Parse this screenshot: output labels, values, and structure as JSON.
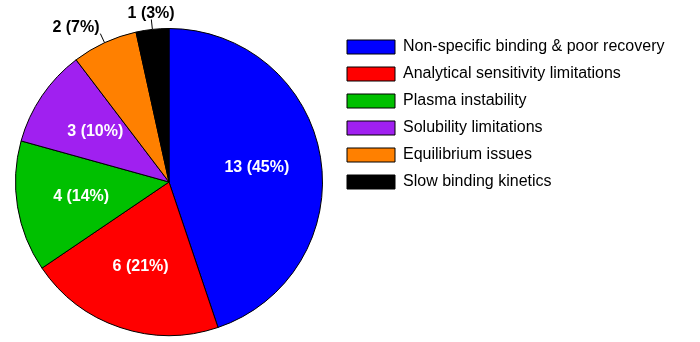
{
  "chart_data": {
    "type": "pie",
    "categories": [
      "Non-specific binding & poor recovery",
      "Analytical sensitivity limitations",
      "Plasma instability",
      "Solubility limitations",
      "Equilibrium issues",
      "Slow binding kinetics"
    ],
    "values": [
      13,
      6,
      4,
      3,
      2,
      1
    ],
    "value_labels": [
      "13 (45%)",
      "6 (21%)",
      "4 (14%)",
      "3 (10%)",
      "2 (7%)",
      "1 (3%)"
    ],
    "colors": [
      "#0000ff",
      "#ff0000",
      "#00c000",
      "#a020f0",
      "#ff8000",
      "#000000"
    ],
    "legend": "right",
    "data_labels": true
  }
}
